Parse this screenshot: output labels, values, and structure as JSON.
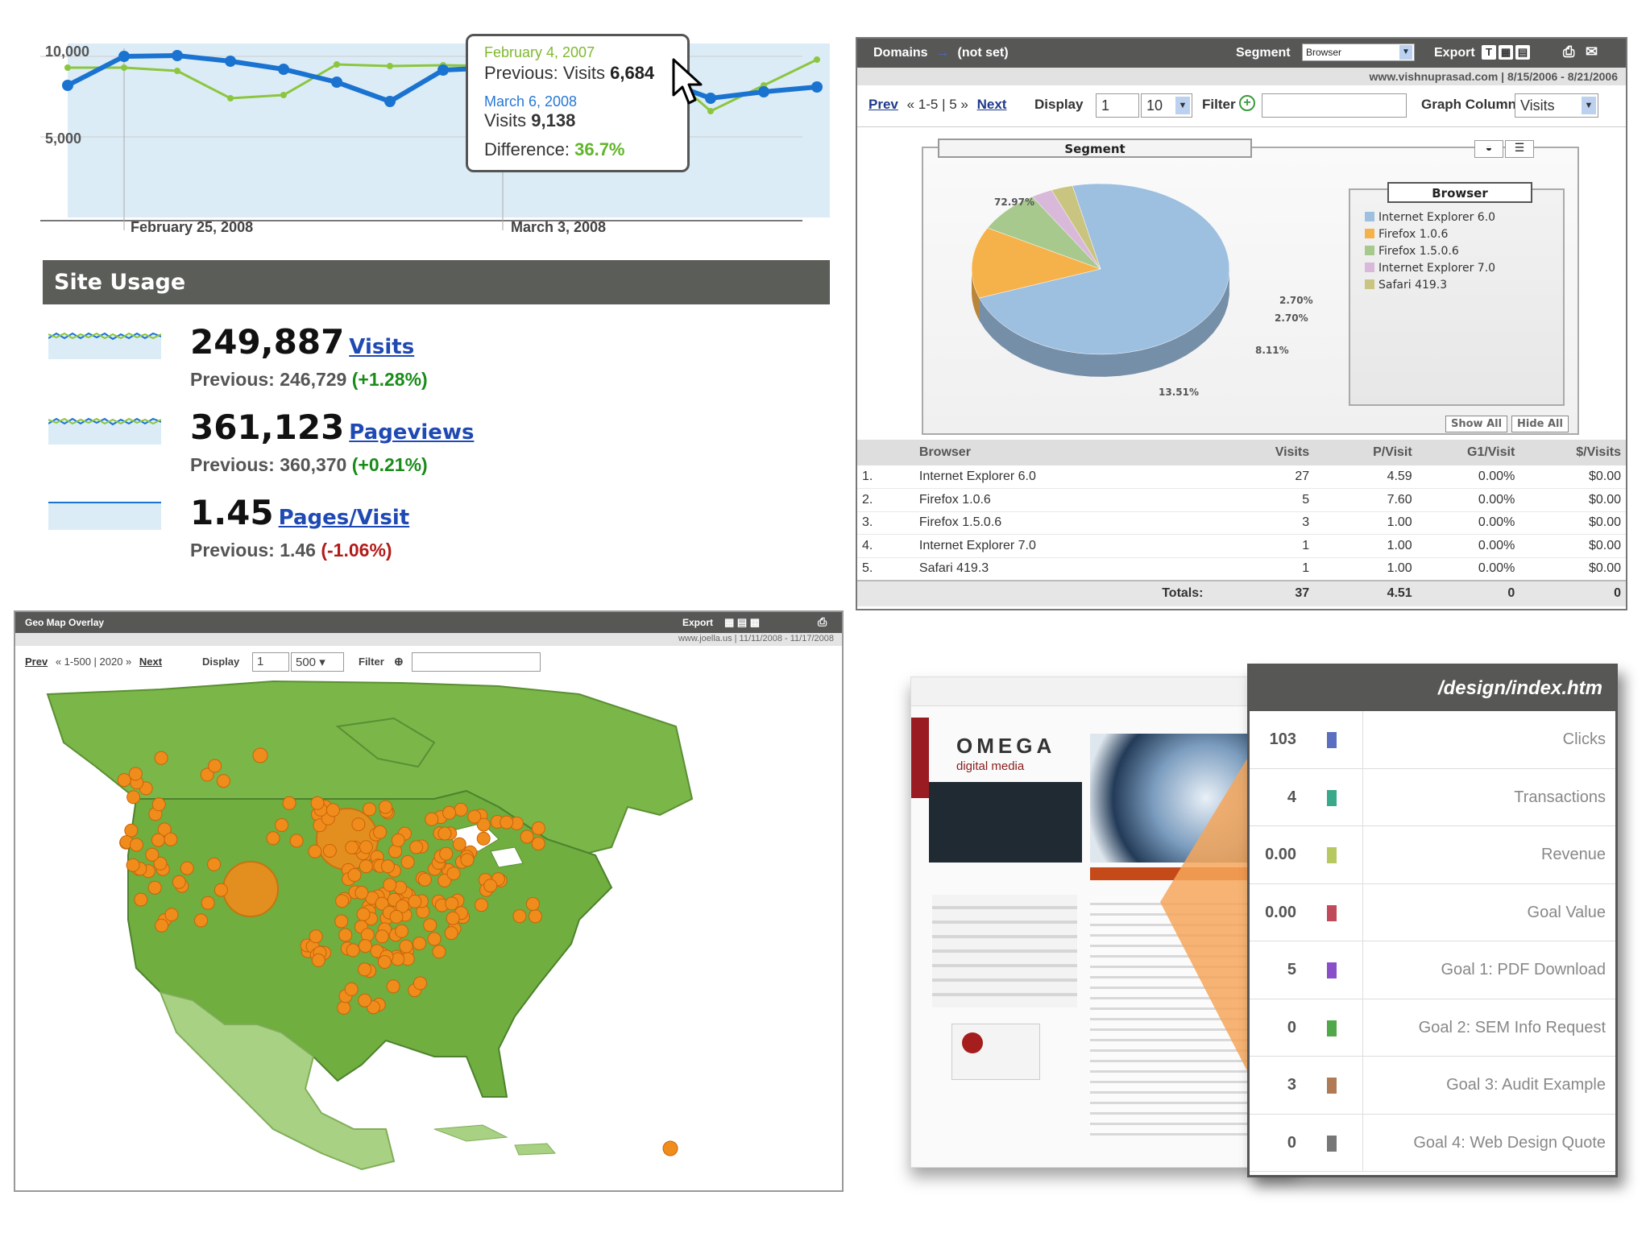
{
  "visits_chart": {
    "y_ticks": [
      "10,000",
      "5,000"
    ],
    "x_ticks": [
      "February 25, 2008",
      "March 3, 2008"
    ],
    "tooltip": {
      "prev_date": "February 4, 2007",
      "prev_label": "Previous: Visits",
      "prev_value": "6,684",
      "cur_date": "March 6, 2008",
      "cur_label": "Visits",
      "cur_value": "9,138",
      "diff_label": "Difference:",
      "diff_value": "36.7%"
    },
    "colors": {
      "current": "#1a73d0",
      "previous": "#8cc63f",
      "area": "#dcecf7"
    }
  },
  "site_usage": {
    "title": "Site Usage",
    "metrics": [
      {
        "value": "249,887",
        "label": "Visits",
        "prev_text": "Previous: 246,729",
        "change": "(+1.28%)",
        "trend": "up"
      },
      {
        "value": "361,123",
        "label": "Pageviews",
        "prev_text": "Previous: 360,370",
        "change": "(+0.21%)",
        "trend": "up"
      },
      {
        "value": "1.45",
        "label": "Pages/Visit",
        "prev_text": "Previous: 1.46",
        "change": "(-1.06%)",
        "trend": "down"
      }
    ]
  },
  "browser_report": {
    "header": {
      "dimension": "Domains",
      "arrow": "→",
      "value": "(not set)",
      "segment_label": "Segment",
      "segment_value": "Browser",
      "export_label": "Export"
    },
    "subheader": "www.vishnuprasad.com  |  8/15/2006 - 8/21/2006",
    "controls": {
      "prev": "Prev",
      "range": "« 1-5 | 5 »",
      "next": "Next",
      "display_label": "Display",
      "display_start": "1",
      "display_count": "10",
      "filter_label": "Filter",
      "graph_column_label": "Graph Column",
      "graph_column_value": "Visits"
    },
    "segment_title": "Segment",
    "legend_title": "Browser",
    "show_all": "Show All",
    "hide_all": "Hide All",
    "pie_labels": [
      "72.97%",
      "13.51%",
      "8.11%",
      "2.70%",
      "2.70%"
    ],
    "columns": [
      "",
      "Browser",
      "Visits",
      "P/Visit",
      "G1/Visit",
      "$/Visits"
    ],
    "rows": [
      [
        "1.",
        "Internet Explorer 6.0",
        "27",
        "4.59",
        "0.00%",
        "$0.00"
      ],
      [
        "2.",
        "Firefox 1.0.6",
        "5",
        "7.60",
        "0.00%",
        "$0.00"
      ],
      [
        "3.",
        "Firefox 1.5.0.6",
        "3",
        "1.00",
        "0.00%",
        "$0.00"
      ],
      [
        "4.",
        "Internet Explorer 7.0",
        "1",
        "1.00",
        "0.00%",
        "$0.00"
      ],
      [
        "5.",
        "Safari 419.3",
        "1",
        "1.00",
        "0.00%",
        "$0.00"
      ]
    ],
    "totals": {
      "label": "Totals:",
      "visits": "37",
      "pvisit": "4.51",
      "g1": "0",
      "dollars": "0"
    },
    "legend_colors": [
      "#9dbfe0",
      "#f6b24a",
      "#a7c98e",
      "#d9b9d9",
      "#c9c47f"
    ]
  },
  "chart_data": {
    "type": "pie",
    "title": "Segment",
    "categories": [
      "Internet Explorer 6.0",
      "Firefox 1.0.6",
      "Firefox 1.5.0.6",
      "Internet Explorer 7.0",
      "Safari 419.3"
    ],
    "values": [
      72.97,
      13.51,
      8.11,
      2.7,
      2.7
    ],
    "legend": "right"
  },
  "geo_map": {
    "title": "Geo Map Overlay",
    "export_label": "Export",
    "subheader": "www.joella.us  |  11/11/2008 - 11/17/2008",
    "controls": {
      "prev": "Prev",
      "range": "« 1-500 | 2020 »",
      "next": "Next",
      "display_label": "Display",
      "display_start": "1",
      "display_count": "500",
      "filter_label": "Filter"
    },
    "colors": {
      "land": "#7ab648",
      "land_light": "#a9d184",
      "water": "#ffffff",
      "dot": "#f08c1c"
    }
  },
  "site_overlay": {
    "page": "/design/index.htm",
    "logo_text": "OMEGA",
    "logo_sub": "digital media",
    "rows": [
      {
        "value": "103",
        "label": "Clicks",
        "color": "#5a6fbf"
      },
      {
        "value": "4",
        "label": "Transactions",
        "color": "#3aa88a"
      },
      {
        "value": "0.00",
        "label": "Revenue",
        "color": "#b7c860"
      },
      {
        "value": "0.00",
        "label": "Goal Value",
        "color": "#c04a5a"
      },
      {
        "value": "5",
        "label": "Goal 1: PDF Download",
        "color": "#8a4fc8"
      },
      {
        "value": "0",
        "label": "Goal 2: SEM Info Request",
        "color": "#4fa84a"
      },
      {
        "value": "3",
        "label": "Goal 3: Audit Example",
        "color": "#b07a55"
      },
      {
        "value": "0",
        "label": "Goal 4: Web Design Quote",
        "color": "#777777"
      }
    ]
  }
}
